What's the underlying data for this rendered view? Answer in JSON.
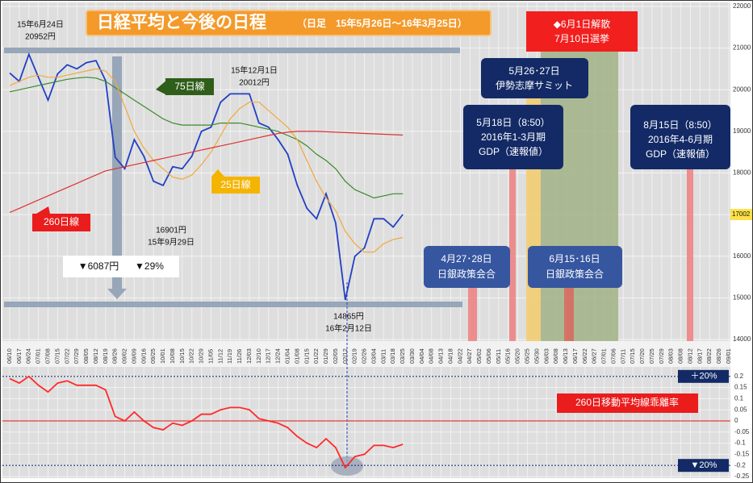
{
  "title": "日経平均と今後の日程",
  "subtitle": "（日足　15年5月26日〜16年3月25日）",
  "chart_data": [
    {
      "type": "line",
      "categories": [
        "06/10",
        "06/17",
        "06/24",
        "07/01",
        "07/08",
        "07/15",
        "07/22",
        "07/29",
        "08/05",
        "08/12",
        "08/19",
        "08/26",
        "09/02",
        "09/09",
        "09/16",
        "09/25",
        "10/01",
        "10/08",
        "10/15",
        "10/22",
        "10/29",
        "11/05",
        "11/12",
        "11/19",
        "11/26",
        "12/03",
        "12/10",
        "12/17",
        "12/24",
        "01/04",
        "01/08",
        "01/15",
        "01/22",
        "01/29",
        "02/05",
        "02/12",
        "02/19",
        "02/26",
        "03/04",
        "03/11",
        "03/18",
        "03/25",
        "03/30",
        "04/04",
        "04/08",
        "04/13",
        "04/18",
        "04/22",
        "04/27",
        "05/02",
        "05/06",
        "05/11",
        "05/16",
        "05/20",
        "05/25",
        "05/30",
        "06/03",
        "06/08",
        "06/13",
        "06/17",
        "06/22",
        "06/27",
        "07/01",
        "07/06",
        "07/11",
        "07/15",
        "07/20",
        "07/25",
        "07/29",
        "08/03",
        "08/08",
        "08/12",
        "08/17",
        "08/22",
        "08/26",
        "09/01"
      ],
      "series": [
        {
          "color": "#2140c4",
          "values": [
            20400,
            20200,
            20850,
            20300,
            19750,
            20380,
            20600,
            20500,
            20650,
            20700,
            20220,
            18380,
            18100,
            18800,
            18400,
            17800,
            17700,
            18150,
            18100,
            18400,
            19000,
            19100,
            19700,
            19900,
            19900,
            19900,
            19200,
            19100,
            18800,
            18450,
            17700,
            17150,
            16900,
            17500,
            16800,
            14950,
            16000,
            16200,
            16900,
            16900,
            16700,
            17002,
            null,
            null,
            null,
            null,
            null,
            null,
            null,
            null,
            null,
            null,
            null,
            null,
            null,
            null,
            null,
            null,
            null,
            null,
            null,
            null,
            null,
            null,
            null,
            null,
            null,
            null,
            null,
            null,
            null,
            null,
            null,
            null,
            null,
            null
          ]
        },
        {
          "name": "75日線",
          "color": "#3a8a2a",
          "values": [
            19950,
            20000,
            20050,
            20100,
            20150,
            20200,
            20250,
            20280,
            20300,
            20280,
            20200,
            20050,
            19900,
            19750,
            19600,
            19450,
            19300,
            19200,
            19150,
            19150,
            19150,
            19150,
            19200,
            19200,
            19200,
            19150,
            19100,
            19050,
            19000,
            18900,
            18800,
            18650,
            18450,
            18300,
            18100,
            17800,
            17600,
            17500,
            17400,
            17450,
            17500,
            17500,
            null,
            null,
            null,
            null,
            null,
            null,
            null,
            null,
            null,
            null,
            null,
            null,
            null,
            null,
            null,
            null,
            null,
            null,
            null,
            null,
            null,
            null,
            null,
            null,
            null,
            null,
            null,
            null,
            null,
            null,
            null,
            null,
            null,
            null
          ]
        },
        {
          "name": "25日線",
          "color": "#f2a93b",
          "values": [
            20100,
            20200,
            20300,
            20350,
            20300,
            20300,
            20350,
            20400,
            20450,
            20500,
            20450,
            20200,
            19600,
            19000,
            18600,
            18300,
            18100,
            17900,
            17850,
            17950,
            18200,
            18500,
            18900,
            19300,
            19550,
            19700,
            19700,
            19500,
            19300,
            19100,
            18800,
            18300,
            17800,
            17400,
            17100,
            16600,
            16300,
            16100,
            16100,
            16300,
            16400,
            16450,
            null,
            null,
            null,
            null,
            null,
            null,
            null,
            null,
            null,
            null,
            null,
            null,
            null,
            null,
            null,
            null,
            null,
            null,
            null,
            null,
            null,
            null,
            null,
            null,
            null,
            null,
            null,
            null,
            null,
            null,
            null,
            null,
            null,
            null
          ]
        },
        {
          "name": "260日線",
          "color": "#e03030",
          "values": [
            17050,
            17150,
            17250,
            17350,
            17450,
            17550,
            17650,
            17750,
            17850,
            17950,
            18050,
            18100,
            18150,
            18200,
            18250,
            18300,
            18350,
            18400,
            18450,
            18500,
            18550,
            18600,
            18650,
            18700,
            18750,
            18800,
            18850,
            18900,
            18950,
            18980,
            19000,
            19000,
            19000,
            18990,
            18980,
            18970,
            18960,
            18950,
            18940,
            18930,
            18920,
            18910,
            null,
            null,
            null,
            null,
            null,
            null,
            null,
            null,
            null,
            null,
            null,
            null,
            null,
            null,
            null,
            null,
            null,
            null,
            null,
            null,
            null,
            null,
            null,
            null,
            null,
            null,
            null,
            null,
            null,
            null,
            null,
            null,
            null,
            null
          ]
        }
      ],
      "ylim": [
        14000,
        22000
      ],
      "yticks": [
        14000,
        15000,
        16000,
        17000,
        18000,
        19000,
        20000,
        21000,
        22000
      ],
      "last_value": 17002,
      "grid": true,
      "annotations": [
        {
          "text": [
            "15年6月24日",
            "20952円"
          ]
        },
        {
          "text": [
            "15年12月1日",
            "20012円"
          ]
        },
        {
          "text": [
            "16901円",
            "15年9月29日"
          ]
        },
        {
          "text": [
            "14865円",
            "16年2月12日"
          ]
        },
        {
          "text": [
            "▼6087円",
            "▼29%"
          ]
        },
        {
          "text": [
            "◆6月1日解散",
            "7月10日選挙"
          ]
        },
        {
          "text": [
            "5月26･27日",
            "伊勢志摩サミット"
          ]
        },
        {
          "text": [
            "5月18日（8:50）",
            "2016年1-3月期",
            "GDP（速報値）"
          ]
        },
        {
          "text": [
            "8月15日（8:50）",
            "2016年4-6月期",
            "GDP（速報値）"
          ]
        },
        {
          "text": [
            "4月27･28日",
            "日銀政策会合"
          ]
        },
        {
          "text": [
            "6月15･16日",
            "日銀政策会合"
          ]
        }
      ]
    },
    {
      "type": "line",
      "series": [
        {
          "name": "260日移動平均線乖離率",
          "color": "#ff2a2a",
          "values": [
            0.19,
            0.17,
            0.2,
            0.16,
            0.13,
            0.17,
            0.18,
            0.16,
            0.16,
            0.16,
            0.14,
            0.02,
            0.0,
            0.04,
            0.0,
            -0.03,
            -0.04,
            -0.01,
            -0.02,
            0.0,
            0.03,
            0.03,
            0.05,
            0.06,
            0.06,
            0.05,
            0.01,
            0.0,
            -0.01,
            -0.03,
            -0.07,
            -0.1,
            -0.12,
            -0.08,
            -0.12,
            -0.21,
            -0.16,
            -0.15,
            -0.11,
            -0.11,
            -0.12,
            -0.105,
            null,
            null,
            null,
            null,
            null,
            null,
            null,
            null,
            null,
            null,
            null,
            null,
            null,
            null,
            null,
            null,
            null,
            null,
            null,
            null,
            null,
            null,
            null,
            null,
            null,
            null,
            null,
            null,
            null,
            null,
            null,
            null,
            null,
            null
          ]
        }
      ],
      "ylim": [
        -0.25,
        0.25
      ],
      "yticks": [
        0.2,
        0.15,
        0.1,
        0.05,
        0,
        -0.05,
        -0.1,
        -0.15,
        -0.2,
        -0.25
      ],
      "band_labels": [
        "＋20%",
        "▼20%"
      ]
    }
  ]
}
